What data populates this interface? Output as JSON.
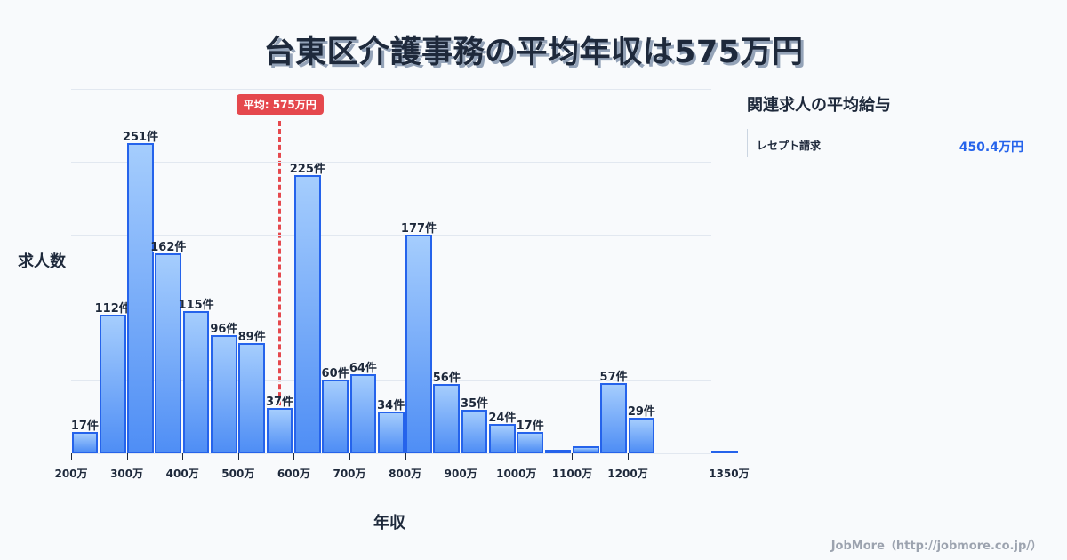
{
  "title": "台東区介護事務の平均年収は575万円",
  "axis": {
    "ylabel": "求人数",
    "xlabel": "年収"
  },
  "average": {
    "label": "平均: 575万円",
    "value": 575
  },
  "panel": {
    "title": "関連求人の平均給与",
    "rows": [
      {
        "name": "レセプト請求",
        "value": "450.4万円"
      }
    ]
  },
  "footer": "JobMore（http://jobmore.co.jp/）",
  "colors": {
    "bar_border": "#2563eb",
    "bar_top": "#a5cdfd",
    "bar_bottom": "#4f8ef5",
    "average": "#e5484d",
    "accent": "#2563eb"
  },
  "chart_data": {
    "type": "bar",
    "title": "台東区介護事務の平均年収は575万円",
    "xlabel": "年収",
    "ylabel": "求人数",
    "bin_width": 50,
    "x_unit": "万円",
    "bins_start": [
      200,
      250,
      300,
      350,
      400,
      450,
      500,
      550,
      600,
      650,
      700,
      750,
      800,
      850,
      900,
      950,
      1000,
      1050,
      1100,
      1150,
      1200,
      1250,
      1300,
      1350
    ],
    "values": [
      17,
      112,
      251,
      162,
      115,
      96,
      89,
      37,
      225,
      60,
      64,
      34,
      177,
      56,
      35,
      24,
      17,
      3,
      6,
      57,
      29,
      0,
      0,
      2
    ],
    "labels": [
      "17件",
      "112件",
      "251件",
      "162件",
      "115件",
      "96件",
      "89件",
      "37件",
      "225件",
      "60件",
      "64件",
      "34件",
      "177件",
      "56件",
      "35件",
      "24件",
      "17件",
      "",
      "",
      "57件",
      "29件",
      "",
      "",
      ""
    ],
    "x_ticks": [
      "200万",
      "300万",
      "400万",
      "500万",
      "600万",
      "700万",
      "800万",
      "900万",
      "1000万",
      "1100万",
      "1200万",
      "1350万"
    ],
    "x_tick_values": [
      200,
      300,
      400,
      500,
      600,
      700,
      800,
      900,
      1000,
      1100,
      1200,
      1350
    ],
    "ylim": [
      0,
      295
    ],
    "grid": true,
    "average_line": 575
  }
}
